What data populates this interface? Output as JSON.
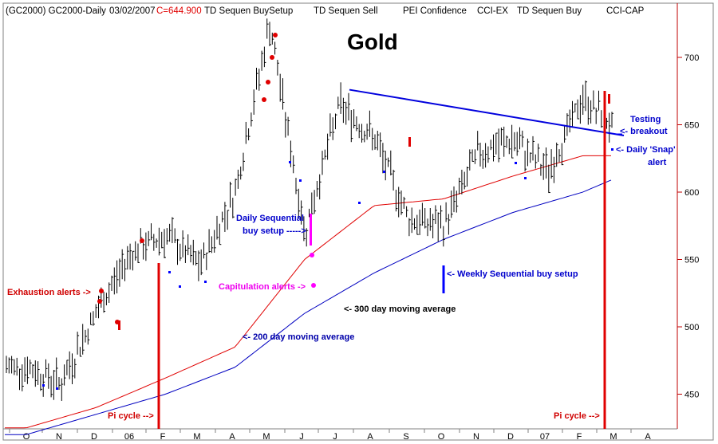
{
  "header": {
    "symbol": "(GC2000) GC2000-Daily",
    "date": "03/02/2007",
    "close": "C=644.900",
    "ind1": "TD Sequen BuySetup",
    "ind2": "TD Sequen Sell",
    "ind3": "PEI Confidence",
    "ind4": "CCI-EX",
    "ind5": "TD Sequen Buy",
    "ind6": "CCI-CAP"
  },
  "colors": {
    "background": "#ffffff",
    "price_bars": "#000000",
    "ma300": "#e00000",
    "ma200": "#0000c0",
    "trendline": "#0000dd",
    "pi_cycle": "#e00000",
    "axis": "#c00000",
    "capitulation": "#ff00ff",
    "sequential": "#0000ff",
    "exhaustion": "#e00000"
  },
  "chart_data": {
    "type": "candlestick",
    "title": "Gold",
    "y_axis_ticks": [
      450,
      500,
      550,
      600,
      650,
      700
    ],
    "ylim": [
      420,
      732
    ],
    "x_axis_labels": [
      "O",
      "N",
      "D",
      "06",
      "F",
      "M",
      "A",
      "M",
      "J",
      "J",
      "A",
      "S",
      "O",
      "N",
      "D",
      "07",
      "F",
      "M",
      "A"
    ],
    "price_path_approx": [
      {
        "t": "O",
        "v": 470
      },
      {
        "t": "N",
        "v": 458
      },
      {
        "t": "D",
        "v": 510
      },
      {
        "t": "06",
        "v": 555
      },
      {
        "t": "F",
        "v": 568
      },
      {
        "t": "M",
        "v": 545
      },
      {
        "t": "A",
        "v": 600
      },
      {
        "t": "M",
        "v": 725
      },
      {
        "t": "J",
        "v": 570
      },
      {
        "t": "J",
        "v": 665
      },
      {
        "t": "A",
        "v": 640
      },
      {
        "t": "S",
        "v": 580
      },
      {
        "t": "O",
        "v": 575
      },
      {
        "t": "N",
        "v": 630
      },
      {
        "t": "D",
        "v": 638
      },
      {
        "t": "07",
        "v": 615
      },
      {
        "t": "F",
        "v": 670
      },
      {
        "t": "M",
        "v": 645
      }
    ],
    "ma300_path_approx": [
      {
        "t": "O",
        "v": 425
      },
      {
        "t": "D",
        "v": 440
      },
      {
        "t": "F",
        "v": 462
      },
      {
        "t": "A",
        "v": 485
      },
      {
        "t": "J",
        "v": 550
      },
      {
        "t": "A",
        "v": 590
      },
      {
        "t": "O",
        "v": 595
      },
      {
        "t": "D",
        "v": 612
      },
      {
        "t": "F",
        "v": 627
      },
      {
        "t": "M",
        "v": 627
      }
    ],
    "ma200_path_approx": [
      {
        "t": "O",
        "v": 420
      },
      {
        "t": "D",
        "v": 435
      },
      {
        "t": "F",
        "v": 450
      },
      {
        "t": "A",
        "v": 470
      },
      {
        "t": "J",
        "v": 510
      },
      {
        "t": "A",
        "v": 540
      },
      {
        "t": "O",
        "v": 565
      },
      {
        "t": "D",
        "v": 585
      },
      {
        "t": "F",
        "v": 600
      },
      {
        "t": "M",
        "v": 611
      }
    ],
    "trendline": {
      "from_v": 676,
      "to_v": 642
    }
  },
  "annotations": {
    "title": "Gold",
    "exhaustion": "Exhaustion alerts ->",
    "daily_seq_1": "Daily Sequential",
    "daily_seq_2": "buy setup ----->",
    "capitulation": "Capitulation alerts ->",
    "ma300_label": "<- 300 day moving average",
    "ma200_label": "<- 200 day moving average",
    "weekly_seq": "<- Weekly Sequential buy setup",
    "testing_1": "Testing",
    "testing_2": "<- breakout",
    "snap_1": "<- Daily 'Snap'",
    "snap_2": "alert",
    "pi_left": "Pi cycle -->",
    "pi_right": "Pi cycle -->"
  }
}
